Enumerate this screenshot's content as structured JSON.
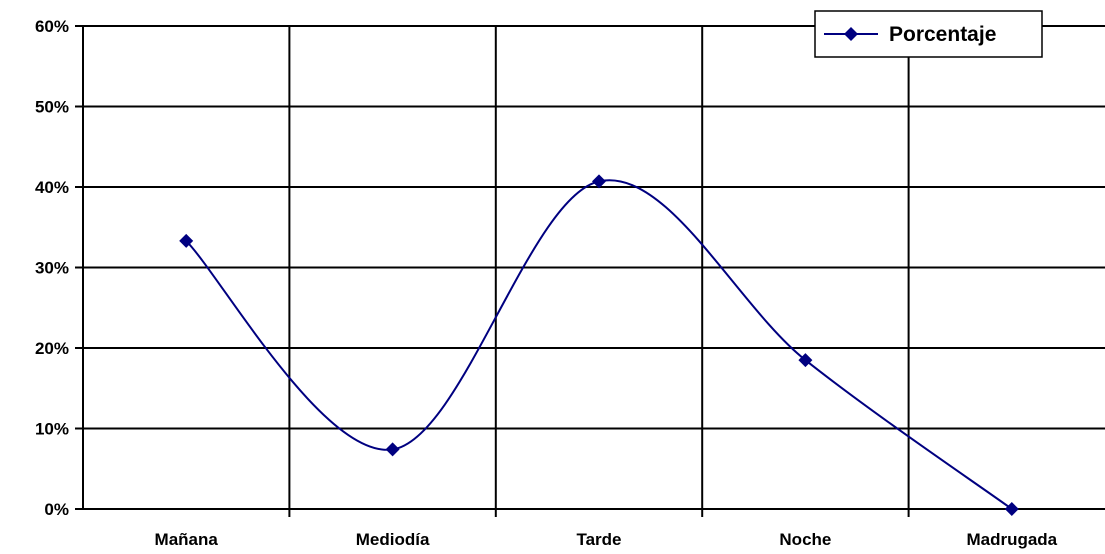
{
  "chart_data": {
    "type": "line",
    "title": "",
    "xlabel": "",
    "ylabel": "",
    "categories": [
      "Mañana",
      "Mediodía",
      "Tarde",
      "Noche",
      "Madrugada"
    ],
    "series": [
      {
        "name": "Porcentaje",
        "values": [
          0.333,
          0.074,
          0.407,
          0.185,
          0.0
        ],
        "color": "#000080",
        "marker": "diamond",
        "smooth": true
      }
    ],
    "ylim": [
      0,
      0.6
    ],
    "yticks": [
      0,
      0.1,
      0.2,
      0.3,
      0.4,
      0.5,
      0.6
    ],
    "ytick_labels": [
      "0%",
      "10%",
      "20%",
      "30%",
      "40%",
      "50%",
      "60%"
    ],
    "grid": true,
    "legend": {
      "position": "top-right"
    }
  }
}
